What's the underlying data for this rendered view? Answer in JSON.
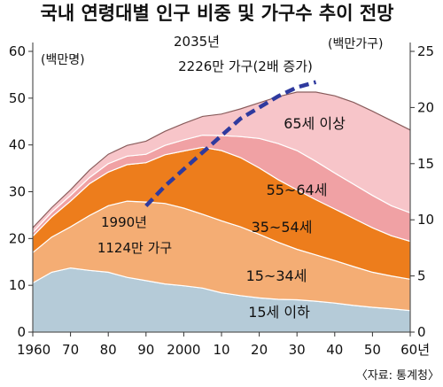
{
  "chart_data": {
    "type": "area",
    "title": "국내 연령대별 인구 비중 및 가구수 추이 전망",
    "source": "〈자료: 통계청〉",
    "x": [
      1960,
      1965,
      1970,
      1975,
      1980,
      1985,
      1990,
      1995,
      2000,
      2005,
      2010,
      2015,
      2020,
      2025,
      2030,
      2035,
      2040,
      2045,
      2050,
      2055,
      2060
    ],
    "x_tick_labels": [
      "1960",
      "70",
      "80",
      "90",
      "2000",
      "10",
      "20",
      "30",
      "40",
      "50",
      "60년"
    ],
    "x_ticks": [
      1960,
      1970,
      1980,
      1990,
      2000,
      2010,
      2020,
      2030,
      2040,
      2050,
      2060
    ],
    "y_left": {
      "unit_label": "(백만명)",
      "lim": [
        0,
        60
      ],
      "ticks": [
        0,
        10,
        20,
        30,
        40,
        50,
        60
      ],
      "tick_labels": [
        "0",
        "10",
        "20",
        "30",
        "40",
        "50",
        "60"
      ]
    },
    "y_right": {
      "unit_label": "(백만가구)",
      "lim": [
        0,
        25
      ],
      "ticks": [
        0,
        5,
        10,
        15,
        20,
        25
      ],
      "tick_labels": [
        "0",
        "5",
        "10",
        "15",
        "20",
        "25"
      ]
    },
    "stacked": true,
    "series": [
      {
        "name": "15세 이하",
        "color": "#b5cbd8",
        "values": [
          10.5,
          12.8,
          13.7,
          13.2,
          12.8,
          11.7,
          11.0,
          10.3,
          9.9,
          9.4,
          8.4,
          7.8,
          7.3,
          7.0,
          6.9,
          6.6,
          6.2,
          5.7,
          5.3,
          5.0,
          4.6
        ]
      },
      {
        "name": "15~34세",
        "color": "#f4ad74",
        "values": [
          6.5,
          7.5,
          8.8,
          11.7,
          14.2,
          16.3,
          16.8,
          17.2,
          16.6,
          15.8,
          15.4,
          14.7,
          13.6,
          12.2,
          10.8,
          9.9,
          9.1,
          8.3,
          7.5,
          7.0,
          6.7
        ]
      },
      {
        "name": "35~54세",
        "color": "#ed7d1c",
        "values": [
          3.5,
          4.3,
          5.5,
          6.8,
          7.2,
          7.8,
          8.4,
          10.4,
          12.2,
          14.3,
          15.0,
          14.8,
          14.2,
          13.4,
          12.7,
          11.8,
          11.0,
          10.3,
          9.5,
          8.6,
          8.1
        ]
      },
      {
        "name": "55~64세",
        "color": "#f0a1a4",
        "values": [
          0.8,
          1.0,
          1.2,
          1.3,
          1.8,
          1.8,
          1.8,
          2.0,
          2.4,
          2.6,
          3.2,
          4.5,
          6.3,
          7.7,
          8.4,
          8.2,
          7.7,
          7.3,
          6.9,
          6.4,
          6.1
        ]
      },
      {
        "name": "65세 이상",
        "color": "#f7c5c9",
        "values": [
          1.0,
          1.0,
          1.2,
          1.6,
          2.0,
          2.3,
          2.8,
          3.0,
          3.5,
          4.0,
          4.6,
          5.9,
          7.6,
          10.0,
          12.5,
          14.8,
          16.5,
          17.5,
          18.0,
          18.2,
          17.7
        ]
      }
    ],
    "household_series": {
      "name": "가구수",
      "axis": "right",
      "color": "#2f3a9e",
      "x": [
        1990,
        1995,
        2000,
        2005,
        2010,
        2015,
        2020,
        2025,
        2030,
        2035
      ],
      "values": [
        11.24,
        13.0,
        14.5,
        16.0,
        17.5,
        19.0,
        20.0,
        21.0,
        21.8,
        22.26
      ]
    },
    "annotations": {
      "a2035_line1": "2035년",
      "a2035_line2": "2226만 가구(2배 증가)",
      "a1990_line1": "1990년",
      "a1990_line2": "1124만 가구"
    }
  }
}
